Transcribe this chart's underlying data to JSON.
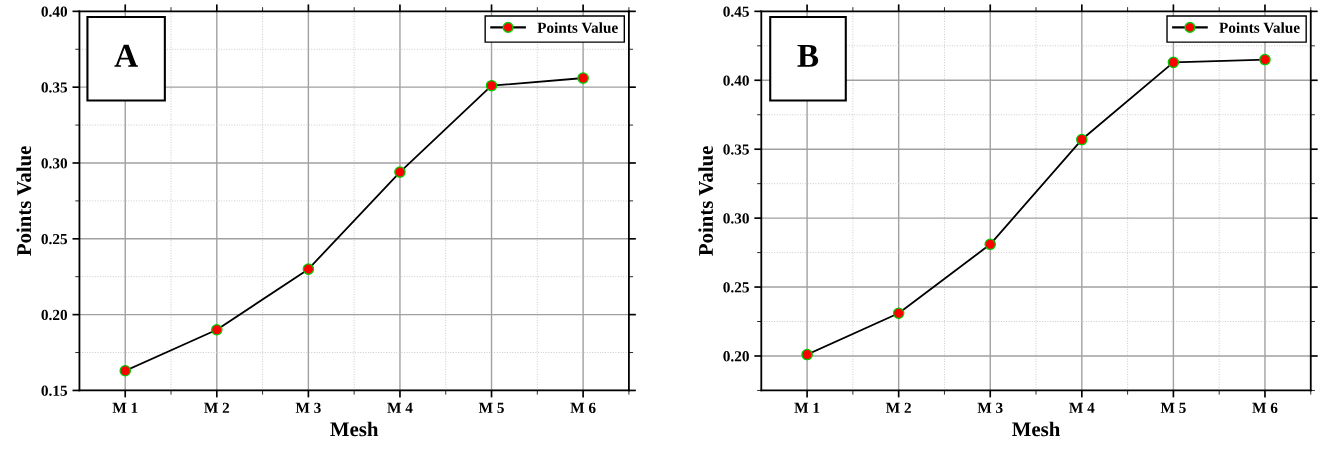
{
  "chart_data": [
    {
      "type": "line",
      "annotations": [
        "A"
      ],
      "xlabel": "Mesh",
      "ylabel": "Points Value",
      "categories": [
        "M 1",
        "M 2",
        "M 3",
        "M 4",
        "M 5",
        "M 6"
      ],
      "series": [
        {
          "name": "Points Value",
          "color": "#000000",
          "colors": [
            "#ff0000",
            "#ff0000",
            "#ff0000",
            "#ff0000",
            "#ff0000",
            "#ff0000"
          ],
          "values": [
            0.163,
            0.19,
            0.23,
            0.294,
            0.351,
            0.356
          ]
        }
      ],
      "ylim": [
        0.15,
        0.4
      ],
      "yticks": [
        {
          "value": 0.15,
          "label": "0.15"
        },
        {
          "value": 0.2,
          "label": "0.20"
        },
        {
          "value": 0.25,
          "label": "0.25"
        },
        {
          "value": 0.3,
          "label": "0.30"
        },
        {
          "value": 0.35,
          "label": "0.35"
        },
        {
          "value": 0.4,
          "label": "0.40"
        }
      ],
      "grid": true,
      "legend": "top right",
      "marker": "circle",
      "line_style": "solid"
    },
    {
      "type": "line",
      "annotations": [
        "B"
      ],
      "xlabel": "Mesh",
      "ylabel": "Points Value",
      "categories": [
        "M 1",
        "M 2",
        "M 3",
        "M 4",
        "M 5",
        "M 6"
      ],
      "series": [
        {
          "name": "Points Value",
          "color": "#000000",
          "colors": [
            "#ff0000",
            "#ff0000",
            "#ff0000",
            "#ff0000",
            "#ff0000",
            "#ff0000"
          ],
          "values": [
            0.201,
            0.231,
            0.281,
            0.357,
            0.413,
            0.415
          ]
        }
      ],
      "ylim": [
        0.175,
        0.45
      ],
      "yticks": [
        {
          "value": 0.2,
          "label": "0.20"
        },
        {
          "value": 0.25,
          "label": "0.25"
        },
        {
          "value": 0.3,
          "label": "0.30"
        },
        {
          "value": 0.35,
          "label": "0.35"
        },
        {
          "value": 0.4,
          "label": "0.40"
        },
        {
          "value": 0.45,
          "label": "0.45"
        }
      ],
      "grid": true,
      "legend": "top right",
      "marker": "circle",
      "line_style": "solid"
    }
  ]
}
